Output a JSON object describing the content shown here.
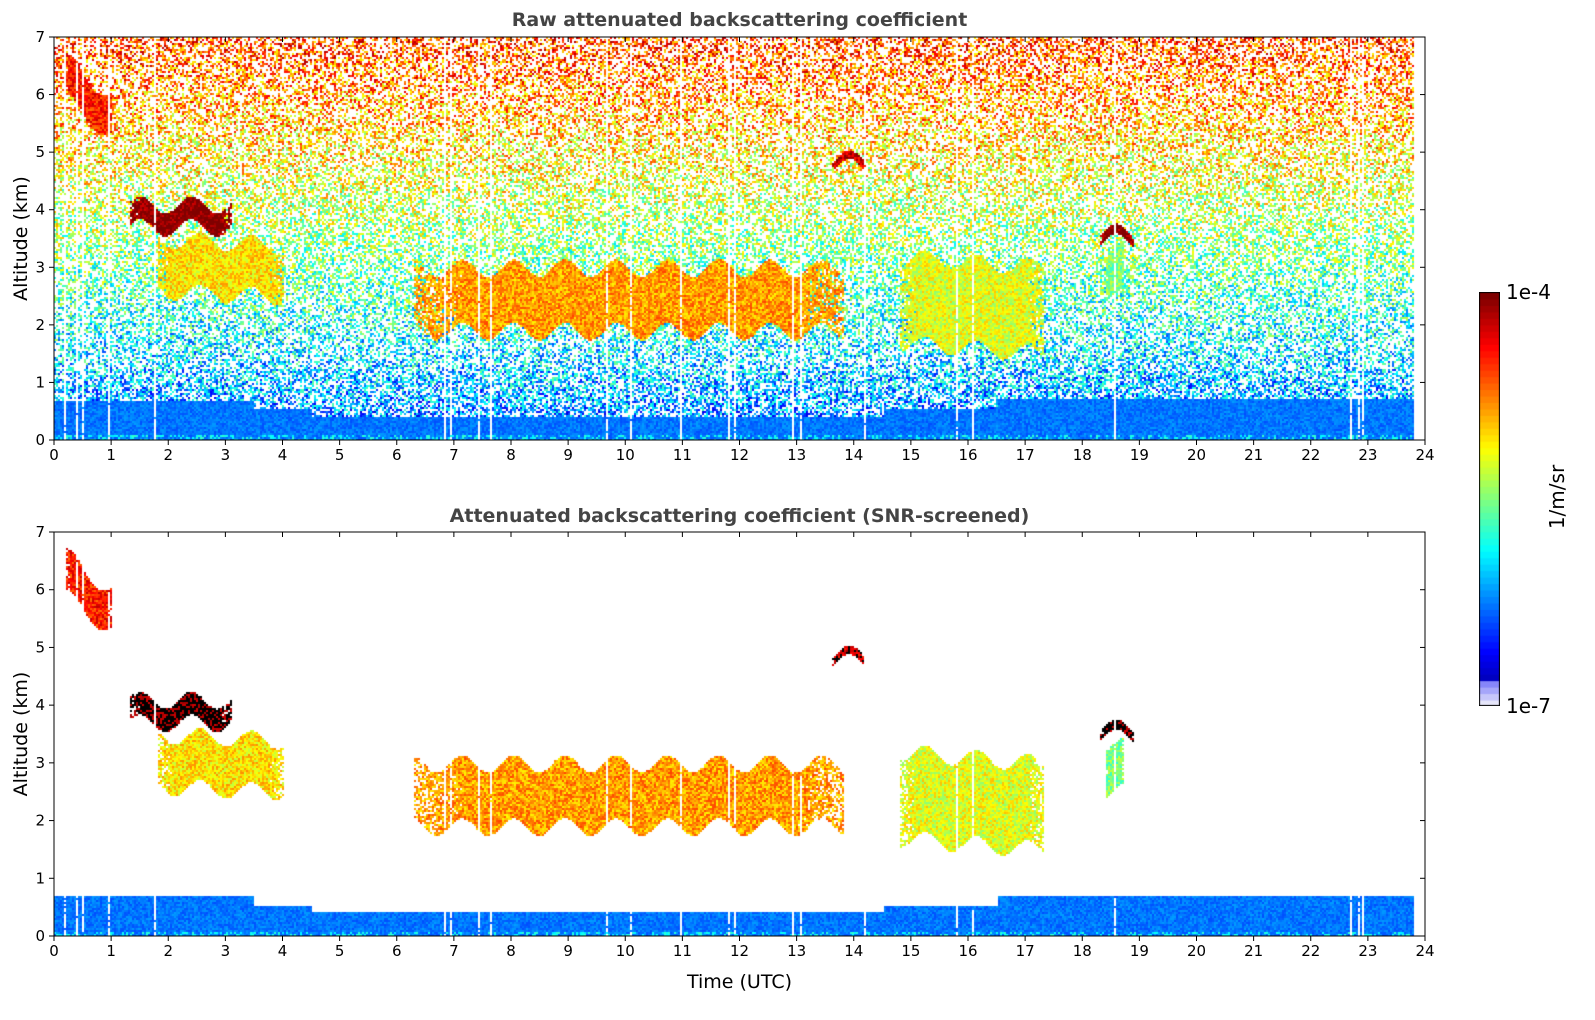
{
  "chart_data": [
    {
      "type": "heatmap",
      "title": "Raw attenuated backscattering coefficient",
      "xlabel": "",
      "ylabel": "Altitude (km)",
      "xlim": [
        0,
        24
      ],
      "ylim": [
        0,
        7
      ],
      "xticks": [
        0,
        1,
        2,
        3,
        4,
        5,
        6,
        7,
        8,
        9,
        10,
        11,
        12,
        13,
        14,
        15,
        16,
        17,
        18,
        19,
        20,
        21,
        22,
        23,
        24
      ],
      "yticks": [
        0,
        1,
        2,
        3,
        4,
        5,
        6,
        7
      ],
      "screened": false
    },
    {
      "type": "heatmap",
      "title": "Attenuated backscattering coefficient (SNR-screened)",
      "xlabel": "Time (UTC)",
      "ylabel": "Altitude (km)",
      "xlim": [
        0,
        24
      ],
      "ylim": [
        0,
        7
      ],
      "xticks": [
        0,
        1,
        2,
        3,
        4,
        5,
        6,
        7,
        8,
        9,
        10,
        11,
        12,
        13,
        14,
        15,
        16,
        17,
        18,
        19,
        20,
        21,
        22,
        23,
        24
      ],
      "yticks": [
        0,
        1,
        2,
        3,
        4,
        5,
        6,
        7
      ],
      "screened": true
    }
  ],
  "colorbar": {
    "label": "1/m/sr",
    "min_label": "1e-7",
    "max_label": "1e-4",
    "log_min": -7,
    "log_max": -4,
    "colormap": "jet"
  },
  "data_end_hour": 23.8,
  "cloud_features": [
    {
      "t": [
        0.2,
        1.0
      ],
      "z": [
        5.9,
        6.6
      ],
      "level": 0.85,
      "slope": -0.6
    },
    {
      "t": [
        1.3,
        3.1
      ],
      "z": [
        3.7,
        4.1
      ],
      "level": 1.0,
      "slope": 0
    },
    {
      "t": [
        1.8,
        4.0
      ],
      "z": [
        2.6,
        3.5
      ],
      "level": 0.65,
      "slope": -0.1
    },
    {
      "t": [
        6.3,
        13.8
      ],
      "z": [
        1.9,
        3.0
      ],
      "level": 0.72,
      "slope": 0
    },
    {
      "t": [
        13.6,
        14.2
      ],
      "z": [
        4.75,
        4.9
      ],
      "level": 0.93,
      "slope": 0
    },
    {
      "t": [
        14.8,
        17.3
      ],
      "z": [
        1.7,
        3.2
      ],
      "level": 0.6,
      "slope": -0.2
    },
    {
      "t": [
        18.3,
        18.9
      ],
      "z": [
        3.45,
        3.62
      ],
      "level": 1.0,
      "slope": 0
    },
    {
      "t": [
        18.4,
        18.7
      ],
      "z": [
        2.5,
        3.3
      ],
      "level": 0.5,
      "slope": 0
    }
  ]
}
